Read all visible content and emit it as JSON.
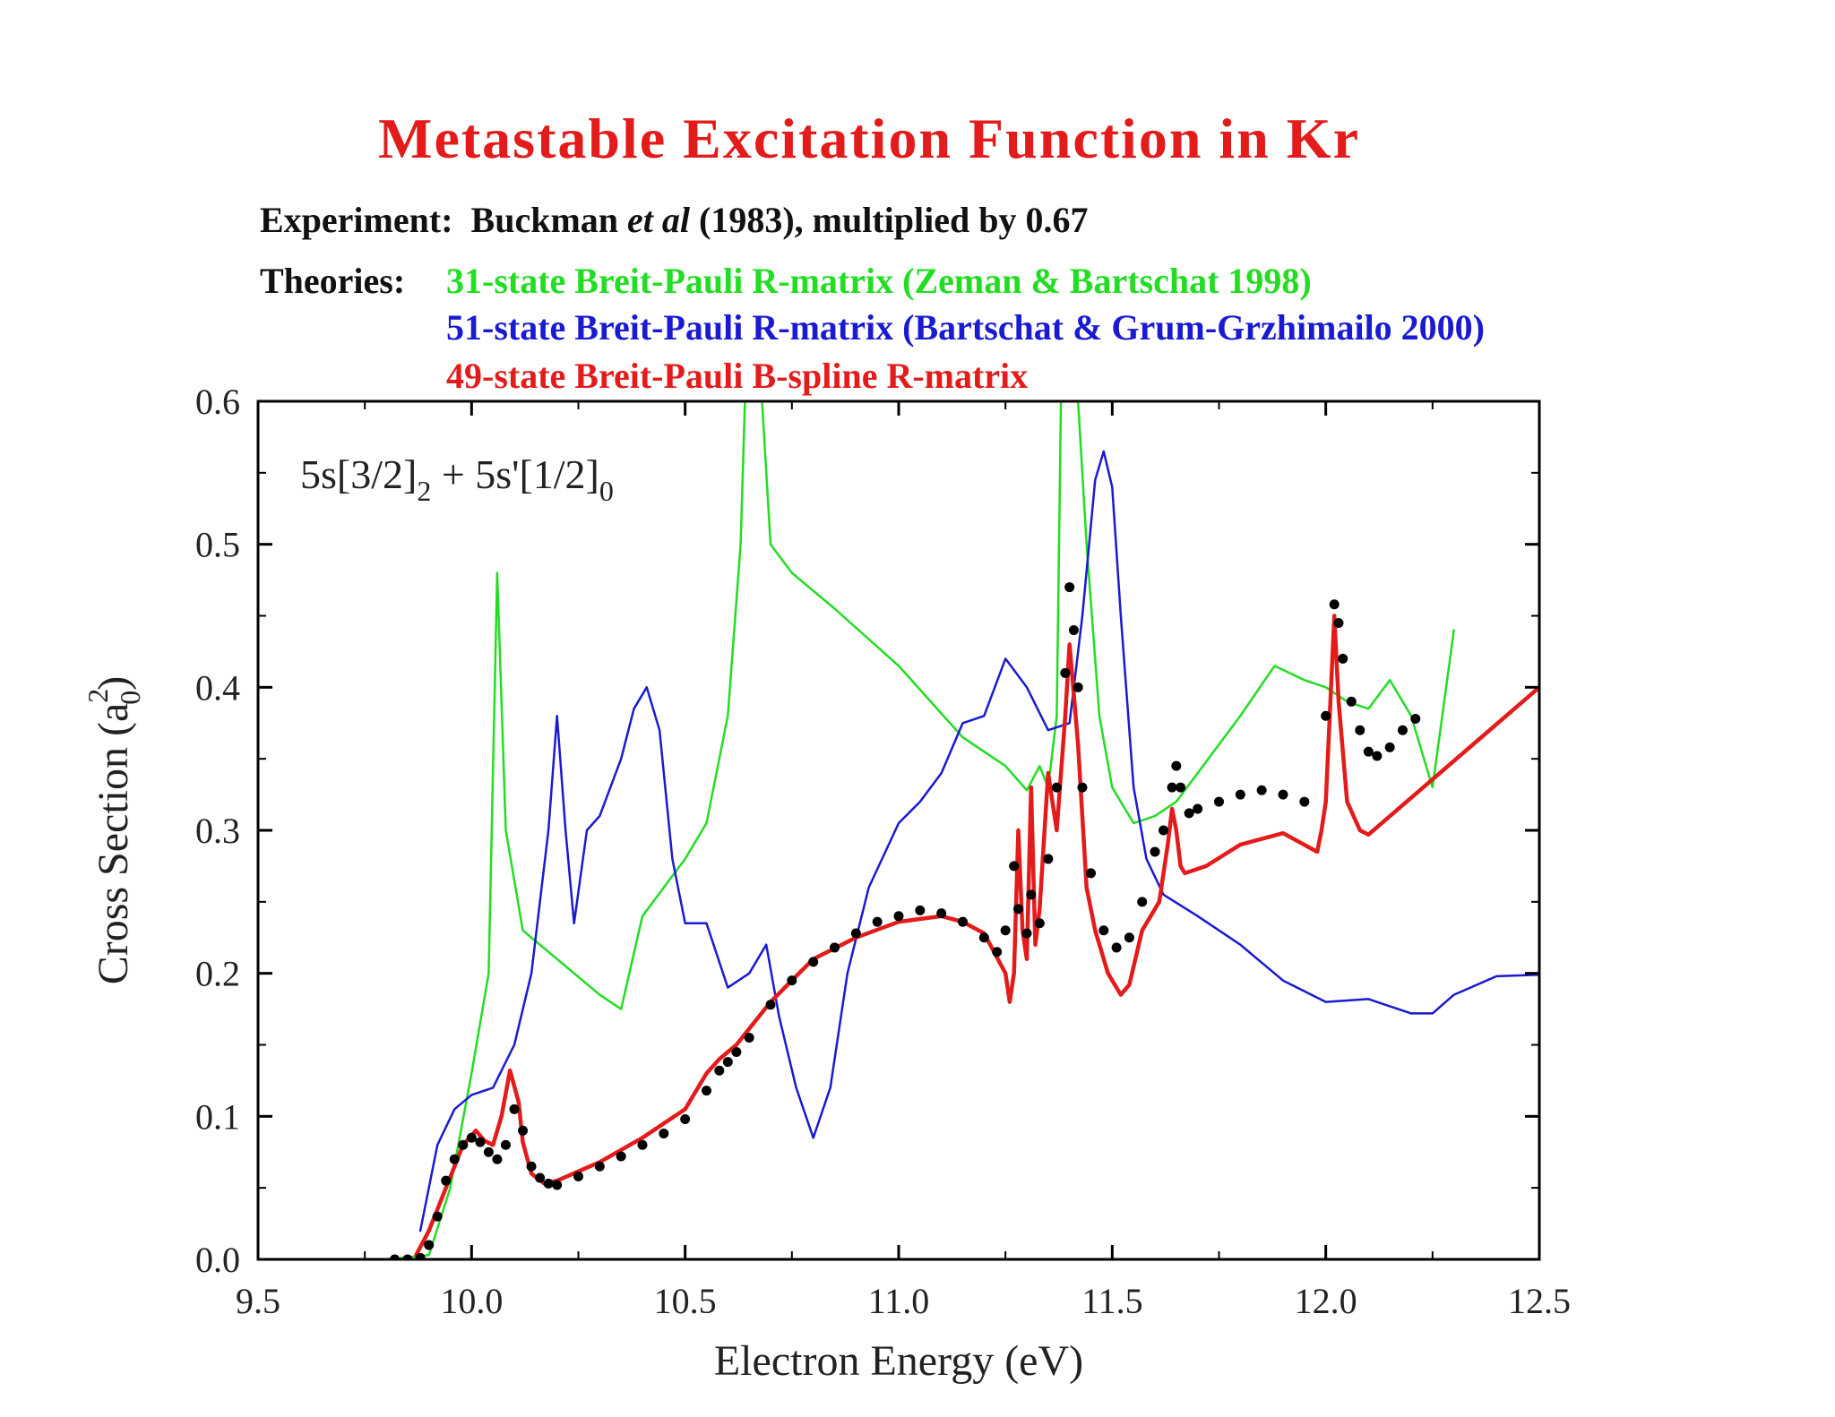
{
  "title": "Metastable Excitation Function in Kr",
  "experiment": {
    "label": "Experiment:",
    "authors": "Buckman",
    "etal": "et al",
    "rest": "(1983), multiplied by 0.67"
  },
  "theories_label": "Theories:",
  "theories": [
    {
      "text": "31-state Breit-Pauli R-matrix (Zeman & Bartschat 1998)",
      "color": "#22dd22"
    },
    {
      "text": "51-state Breit-Pauli R-matrix (Bartschat & Grum-Grzhimailo 2000)",
      "color": "#1a1ad0"
    },
    {
      "text": "49-state Breit-Pauli B-spline R-matrix",
      "color": "#e31b1b"
    }
  ],
  "chart_data": {
    "type": "line",
    "xlabel": "Electron Energy (eV)",
    "ylabel": "Cross Section (a",
    "ylabel_sup": "2",
    "ylabel_sub": "0",
    "ylabel_end": ")",
    "annotation": {
      "a": "5s[3/2]",
      "a_sub": "2",
      "b": " + 5s'[1/2]",
      "b_sub": "0"
    },
    "xlim": [
      9.5,
      12.5
    ],
    "ylim": [
      0.0,
      0.6
    ],
    "xticks": [
      "9.5",
      "10.0",
      "10.5",
      "11.0",
      "11.5",
      "12.0",
      "12.5"
    ],
    "yticks": [
      "0.0",
      "0.1",
      "0.2",
      "0.3",
      "0.4",
      "0.5",
      "0.6"
    ],
    "series": [
      {
        "name": "31-state Breit-Pauli R-matrix (Zeman & Bartschat 1998)",
        "color": "#22dd22",
        "width": 2.5,
        "style": "line",
        "x": [
          9.8,
          9.9,
          9.95,
          10.0,
          10.04,
          10.06,
          10.08,
          10.12,
          10.2,
          10.3,
          10.35,
          10.4,
          10.45,
          10.5,
          10.55,
          10.6,
          10.63,
          10.64,
          10.66,
          10.68,
          10.7,
          10.75,
          10.85,
          11.0,
          11.15,
          11.25,
          11.3,
          11.33,
          11.35,
          11.37,
          11.38,
          11.4,
          11.42,
          11.44,
          11.47,
          11.5,
          11.55,
          11.6,
          11.65,
          11.7,
          11.8,
          11.88,
          11.95,
          12.0,
          12.05,
          12.1,
          12.15,
          12.2,
          12.25,
          12.3
        ],
        "y": [
          0.0,
          0.003,
          0.05,
          0.13,
          0.2,
          0.48,
          0.3,
          0.23,
          0.21,
          0.185,
          0.175,
          0.24,
          0.26,
          0.28,
          0.305,
          0.38,
          0.5,
          0.6,
          0.6,
          0.6,
          0.5,
          0.48,
          0.455,
          0.415,
          0.365,
          0.345,
          0.328,
          0.345,
          0.33,
          0.38,
          0.6,
          0.6,
          0.6,
          0.5,
          0.38,
          0.33,
          0.305,
          0.31,
          0.32,
          0.34,
          0.38,
          0.415,
          0.405,
          0.4,
          0.39,
          0.385,
          0.405,
          0.38,
          0.33,
          0.44
        ]
      },
      {
        "name": "51-state Breit-Pauli R-matrix (Bartschat & Grum-Grzhimailo 2000)",
        "color": "#1a1ad0",
        "width": 2.5,
        "style": "line",
        "x": [
          9.88,
          9.92,
          9.96,
          10.0,
          10.05,
          10.1,
          10.14,
          10.18,
          10.2,
          10.22,
          10.24,
          10.27,
          10.3,
          10.35,
          10.38,
          10.41,
          10.44,
          10.47,
          10.5,
          10.55,
          10.6,
          10.65,
          10.69,
          10.72,
          10.76,
          10.8,
          10.84,
          10.88,
          10.93,
          11.0,
          11.05,
          11.1,
          11.15,
          11.2,
          11.25,
          11.3,
          11.35,
          11.4,
          11.43,
          11.46,
          11.48,
          11.5,
          11.52,
          11.55,
          11.58,
          11.62,
          11.7,
          11.8,
          11.9,
          12.0,
          12.1,
          12.2,
          12.25,
          12.3,
          12.4,
          12.5
        ],
        "y": [
          0.02,
          0.08,
          0.105,
          0.115,
          0.12,
          0.15,
          0.2,
          0.3,
          0.38,
          0.3,
          0.235,
          0.3,
          0.31,
          0.35,
          0.385,
          0.4,
          0.37,
          0.28,
          0.235,
          0.235,
          0.19,
          0.2,
          0.22,
          0.17,
          0.12,
          0.085,
          0.12,
          0.2,
          0.26,
          0.305,
          0.32,
          0.34,
          0.375,
          0.38,
          0.42,
          0.4,
          0.37,
          0.375,
          0.45,
          0.545,
          0.565,
          0.54,
          0.45,
          0.33,
          0.28,
          0.255,
          0.24,
          0.22,
          0.195,
          0.18,
          0.182,
          0.172,
          0.172,
          0.185,
          0.198,
          0.199
        ]
      },
      {
        "name": "49-state Breit-Pauli B-spline R-matrix",
        "color": "#e31b1b",
        "width": 4.5,
        "style": "line",
        "x": [
          9.87,
          9.9,
          9.94,
          9.98,
          10.01,
          10.03,
          10.05,
          10.07,
          10.09,
          10.11,
          10.12,
          10.14,
          10.17,
          10.2,
          10.3,
          10.4,
          10.5,
          10.55,
          10.58,
          10.62,
          10.7,
          10.8,
          10.9,
          11.0,
          11.1,
          11.15,
          11.2,
          11.25,
          11.26,
          11.27,
          11.28,
          11.29,
          11.3,
          11.31,
          11.32,
          11.33,
          11.35,
          11.37,
          11.39,
          11.4,
          11.42,
          11.44,
          11.46,
          11.49,
          11.52,
          11.54,
          11.57,
          11.61,
          11.63,
          11.64,
          11.65,
          11.66,
          11.67,
          11.72,
          11.8,
          11.9,
          11.98,
          11.99,
          12.0,
          12.02,
          12.03,
          12.05,
          12.08,
          12.1,
          12.5
        ],
        "y": [
          0.003,
          0.02,
          0.05,
          0.08,
          0.09,
          0.083,
          0.08,
          0.1,
          0.132,
          0.11,
          0.082,
          0.06,
          0.053,
          0.055,
          0.068,
          0.085,
          0.105,
          0.13,
          0.14,
          0.15,
          0.18,
          0.21,
          0.225,
          0.236,
          0.24,
          0.236,
          0.228,
          0.2,
          0.18,
          0.2,
          0.3,
          0.23,
          0.21,
          0.33,
          0.22,
          0.245,
          0.34,
          0.3,
          0.38,
          0.43,
          0.36,
          0.26,
          0.23,
          0.2,
          0.185,
          0.192,
          0.23,
          0.25,
          0.29,
          0.315,
          0.3,
          0.275,
          0.27,
          0.275,
          0.29,
          0.298,
          0.285,
          0.3,
          0.32,
          0.45,
          0.39,
          0.32,
          0.3,
          0.297,
          0.4
        ]
      },
      {
        "name": "Buckman et al (1983), multiplied by 0.67",
        "color": "#000000",
        "style": "points",
        "x": [
          9.82,
          9.85,
          9.88,
          9.9,
          9.92,
          9.94,
          9.96,
          9.98,
          10.0,
          10.02,
          10.04,
          10.06,
          10.08,
          10.1,
          10.12,
          10.14,
          10.16,
          10.18,
          10.2,
          10.25,
          10.3,
          10.35,
          10.4,
          10.45,
          10.5,
          10.55,
          10.58,
          10.6,
          10.62,
          10.65,
          10.7,
          10.75,
          10.8,
          10.85,
          10.9,
          10.95,
          11.0,
          11.05,
          11.1,
          11.15,
          11.2,
          11.23,
          11.25,
          11.27,
          11.28,
          11.3,
          11.31,
          11.33,
          11.35,
          11.37,
          11.39,
          11.4,
          11.41,
          11.42,
          11.43,
          11.45,
          11.48,
          11.51,
          11.54,
          11.57,
          11.6,
          11.62,
          11.64,
          11.65,
          11.66,
          11.68,
          11.7,
          11.75,
          11.8,
          11.85,
          11.9,
          11.95,
          12.0,
          12.02,
          12.03,
          12.04,
          12.06,
          12.08,
          12.1,
          12.12,
          12.15,
          12.18,
          12.21
        ],
        "y": [
          0.0,
          0.0,
          0.001,
          0.01,
          0.03,
          0.055,
          0.07,
          0.08,
          0.085,
          0.082,
          0.075,
          0.07,
          0.08,
          0.105,
          0.09,
          0.065,
          0.057,
          0.053,
          0.052,
          0.058,
          0.065,
          0.072,
          0.08,
          0.088,
          0.098,
          0.118,
          0.132,
          0.138,
          0.145,
          0.155,
          0.178,
          0.195,
          0.208,
          0.218,
          0.228,
          0.236,
          0.24,
          0.244,
          0.242,
          0.236,
          0.225,
          0.215,
          0.23,
          0.275,
          0.245,
          0.228,
          0.255,
          0.235,
          0.28,
          0.33,
          0.41,
          0.47,
          0.44,
          0.4,
          0.33,
          0.27,
          0.23,
          0.218,
          0.225,
          0.25,
          0.285,
          0.3,
          0.33,
          0.345,
          0.33,
          0.312,
          0.315,
          0.32,
          0.325,
          0.328,
          0.325,
          0.32,
          0.38,
          0.458,
          0.445,
          0.42,
          0.39,
          0.37,
          0.355,
          0.352,
          0.358,
          0.37,
          0.378
        ]
      }
    ]
  }
}
